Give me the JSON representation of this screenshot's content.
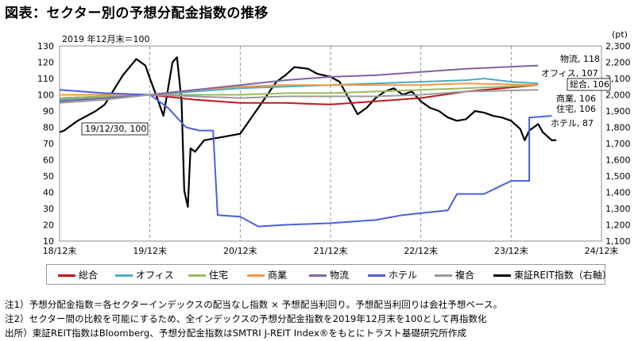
{
  "title": "図表：セクター別の予想分配金指数の推移",
  "chart_data": {
    "type": "line",
    "base_note": "2019 年12月末＝100",
    "y_unit_right": "(pt)",
    "x_ticks": [
      "18/12末",
      "19/12末",
      "20/12末",
      "21/12末",
      "22/12末",
      "23/12末",
      "24/12末"
    ],
    "y_left": {
      "min": 10,
      "max": 130,
      "ticks": [
        "130",
        "120",
        "110",
        "100",
        "90",
        "80",
        "70",
        "60",
        "50",
        "40",
        "30",
        "20",
        "10"
      ]
    },
    "y_right": {
      "min": 1100,
      "max": 2300,
      "ticks": [
        "2,300",
        "2,200",
        "2,100",
        "2,000",
        "1,900",
        "1,800",
        "1,700",
        "1,600",
        "1,500",
        "1,400",
        "1,300",
        "1,200",
        "1,100"
      ]
    },
    "grid": "vertical-dashed",
    "series": [
      {
        "name": "総合",
        "color": "#c0181f",
        "axis": "left",
        "points": [
          [
            0,
            98
          ],
          [
            0.5,
            99
          ],
          [
            1,
            100
          ],
          [
            1.5,
            97
          ],
          [
            2,
            95
          ],
          [
            2.5,
            95
          ],
          [
            3,
            94
          ],
          [
            3.5,
            96
          ],
          [
            4,
            98
          ],
          [
            4.5,
            102
          ],
          [
            5.3,
            106
          ]
        ]
      },
      {
        "name": "オフィス",
        "color": "#4bacc6",
        "axis": "left",
        "points": [
          [
            0,
            97
          ],
          [
            0.5,
            98
          ],
          [
            1,
            100
          ],
          [
            1.5,
            102
          ],
          [
            2,
            104
          ],
          [
            2.5,
            105
          ],
          [
            3,
            106
          ],
          [
            3.5,
            107
          ],
          [
            4,
            108
          ],
          [
            4.5,
            109
          ],
          [
            4.7,
            110
          ],
          [
            5,
            108
          ],
          [
            5.3,
            107
          ]
        ]
      },
      {
        "name": "住宅",
        "color": "#9bbb59",
        "axis": "left",
        "points": [
          [
            0,
            98
          ],
          [
            0.5,
            99
          ],
          [
            1,
            100
          ],
          [
            1.5,
            100
          ],
          [
            2,
            100
          ],
          [
            2.5,
            101
          ],
          [
            3,
            101
          ],
          [
            3.5,
            102
          ],
          [
            4,
            103
          ],
          [
            4.5,
            104
          ],
          [
            5.3,
            106
          ]
        ]
      },
      {
        "name": "商業",
        "color": "#f79646",
        "axis": "left",
        "points": [
          [
            0,
            100
          ],
          [
            0.5,
            100
          ],
          [
            1,
            100
          ],
          [
            1.5,
            103
          ],
          [
            2,
            105
          ],
          [
            2.5,
            106
          ],
          [
            3,
            106
          ],
          [
            3.5,
            106
          ],
          [
            4,
            106
          ],
          [
            4.5,
            107
          ],
          [
            5.3,
            106
          ]
        ]
      },
      {
        "name": "物流",
        "color": "#8064a2",
        "axis": "left",
        "points": [
          [
            0,
            96
          ],
          [
            0.5,
            98
          ],
          [
            1,
            100
          ],
          [
            1.5,
            103
          ],
          [
            2,
            106
          ],
          [
            2.5,
            109
          ],
          [
            3,
            111
          ],
          [
            3.5,
            112
          ],
          [
            4,
            114
          ],
          [
            4.5,
            116
          ],
          [
            5.3,
            118
          ]
        ]
      },
      {
        "name": "ホテル",
        "color": "#4a5fe0",
        "axis": "left",
        "points": [
          [
            0,
            103
          ],
          [
            0.5,
            101
          ],
          [
            1,
            100
          ],
          [
            1.2,
            92
          ],
          [
            1.4,
            80
          ],
          [
            1.55,
            78
          ],
          [
            1.7,
            78
          ],
          [
            1.75,
            26
          ],
          [
            2,
            25
          ],
          [
            2.2,
            19
          ],
          [
            2.5,
            20
          ],
          [
            3,
            21
          ],
          [
            3.5,
            23
          ],
          [
            3.8,
            26
          ],
          [
            4.3,
            29
          ],
          [
            4.4,
            39
          ],
          [
            4.7,
            39
          ],
          [
            5.0,
            47
          ],
          [
            5.2,
            47
          ],
          [
            5.2,
            86
          ],
          [
            5.45,
            87
          ]
        ]
      },
      {
        "name": "複合",
        "color": "#9a9a9a",
        "axis": "left",
        "points": [
          [
            0,
            95
          ],
          [
            0.5,
            97
          ],
          [
            1,
            100
          ],
          [
            1.5,
            99
          ],
          [
            2,
            98
          ],
          [
            2.5,
            99
          ],
          [
            3,
            99
          ],
          [
            3.5,
            99
          ],
          [
            4,
            100
          ],
          [
            4.5,
            102
          ],
          [
            5.3,
            103
          ]
        ]
      },
      {
        "name": "東証REIT指数（右軸）",
        "color": "#000000",
        "axis": "right",
        "points": [
          [
            0,
            1770
          ],
          [
            0.05,
            1780
          ],
          [
            0.2,
            1840
          ],
          [
            0.4,
            1900
          ],
          [
            0.5,
            1940
          ],
          [
            0.7,
            2120
          ],
          [
            0.85,
            2220
          ],
          [
            0.95,
            2180
          ],
          [
            1.0,
            2100
          ],
          [
            1.08,
            1980
          ],
          [
            1.15,
            1870
          ],
          [
            1.25,
            2200
          ],
          [
            1.3,
            2230
          ],
          [
            1.35,
            1960
          ],
          [
            1.38,
            1410
          ],
          [
            1.42,
            1310
          ],
          [
            1.45,
            1670
          ],
          [
            1.5,
            1650
          ],
          [
            1.6,
            1720
          ],
          [
            1.8,
            1740
          ],
          [
            2.0,
            1760
          ],
          [
            2.1,
            1840
          ],
          [
            2.25,
            1960
          ],
          [
            2.4,
            2080
          ],
          [
            2.5,
            2120
          ],
          [
            2.6,
            2170
          ],
          [
            2.75,
            2160
          ],
          [
            2.85,
            2130
          ],
          [
            3.0,
            2110
          ],
          [
            3.1,
            2080
          ],
          [
            3.2,
            1980
          ],
          [
            3.3,
            1880
          ],
          [
            3.4,
            1920
          ],
          [
            3.5,
            1980
          ],
          [
            3.6,
            2020
          ],
          [
            3.7,
            2040
          ],
          [
            3.8,
            2000
          ],
          [
            3.9,
            2020
          ],
          [
            4.0,
            1960
          ],
          [
            4.1,
            1920
          ],
          [
            4.2,
            1900
          ],
          [
            4.3,
            1860
          ],
          [
            4.4,
            1840
          ],
          [
            4.5,
            1850
          ],
          [
            4.6,
            1900
          ],
          [
            4.7,
            1890
          ],
          [
            4.8,
            1870
          ],
          [
            4.9,
            1860
          ],
          [
            5.0,
            1840
          ],
          [
            5.1,
            1790
          ],
          [
            5.15,
            1720
          ],
          [
            5.2,
            1780
          ],
          [
            5.3,
            1820
          ],
          [
            5.35,
            1770
          ],
          [
            5.45,
            1720
          ],
          [
            5.5,
            1720
          ]
        ]
      }
    ],
    "annotations": [
      {
        "text": "19/12/30, 100"
      },
      {
        "text": "物流, 118"
      },
      {
        "text": "オフィス, 107"
      },
      {
        "text": "総合, 106"
      },
      {
        "text": "商業, 106"
      },
      {
        "text": "住宅, 106"
      },
      {
        "text": "ホテル, 87"
      }
    ]
  },
  "legend": [
    {
      "label": "総合",
      "color": "#c0181f"
    },
    {
      "label": "オフィス",
      "color": "#4bacc6"
    },
    {
      "label": "住宅",
      "color": "#9bbb59"
    },
    {
      "label": "商業",
      "color": "#f79646"
    },
    {
      "label": "物流",
      "color": "#8064a2"
    },
    {
      "label": "ホテル",
      "color": "#4a5fe0"
    },
    {
      "label": "複合",
      "color": "#9a9a9a"
    },
    {
      "label": "東証REIT指数（右軸）",
      "color": "#000000"
    }
  ],
  "notes": [
    "注1）予想分配金指数＝各セクターインデックスの配当なし指数 × 予想配当利回り。予想配当利回りは会社予想ベース。",
    "注2）セクター間の比較を可能にするため、全インデックスの予想分配金指数を2019年12月末を100として再指数化",
    "出所）東証REIT指数はBloomberg、予想分配金指数はSMTRI J-REIT Index®をもとにトラスト基礎研究所作成"
  ]
}
